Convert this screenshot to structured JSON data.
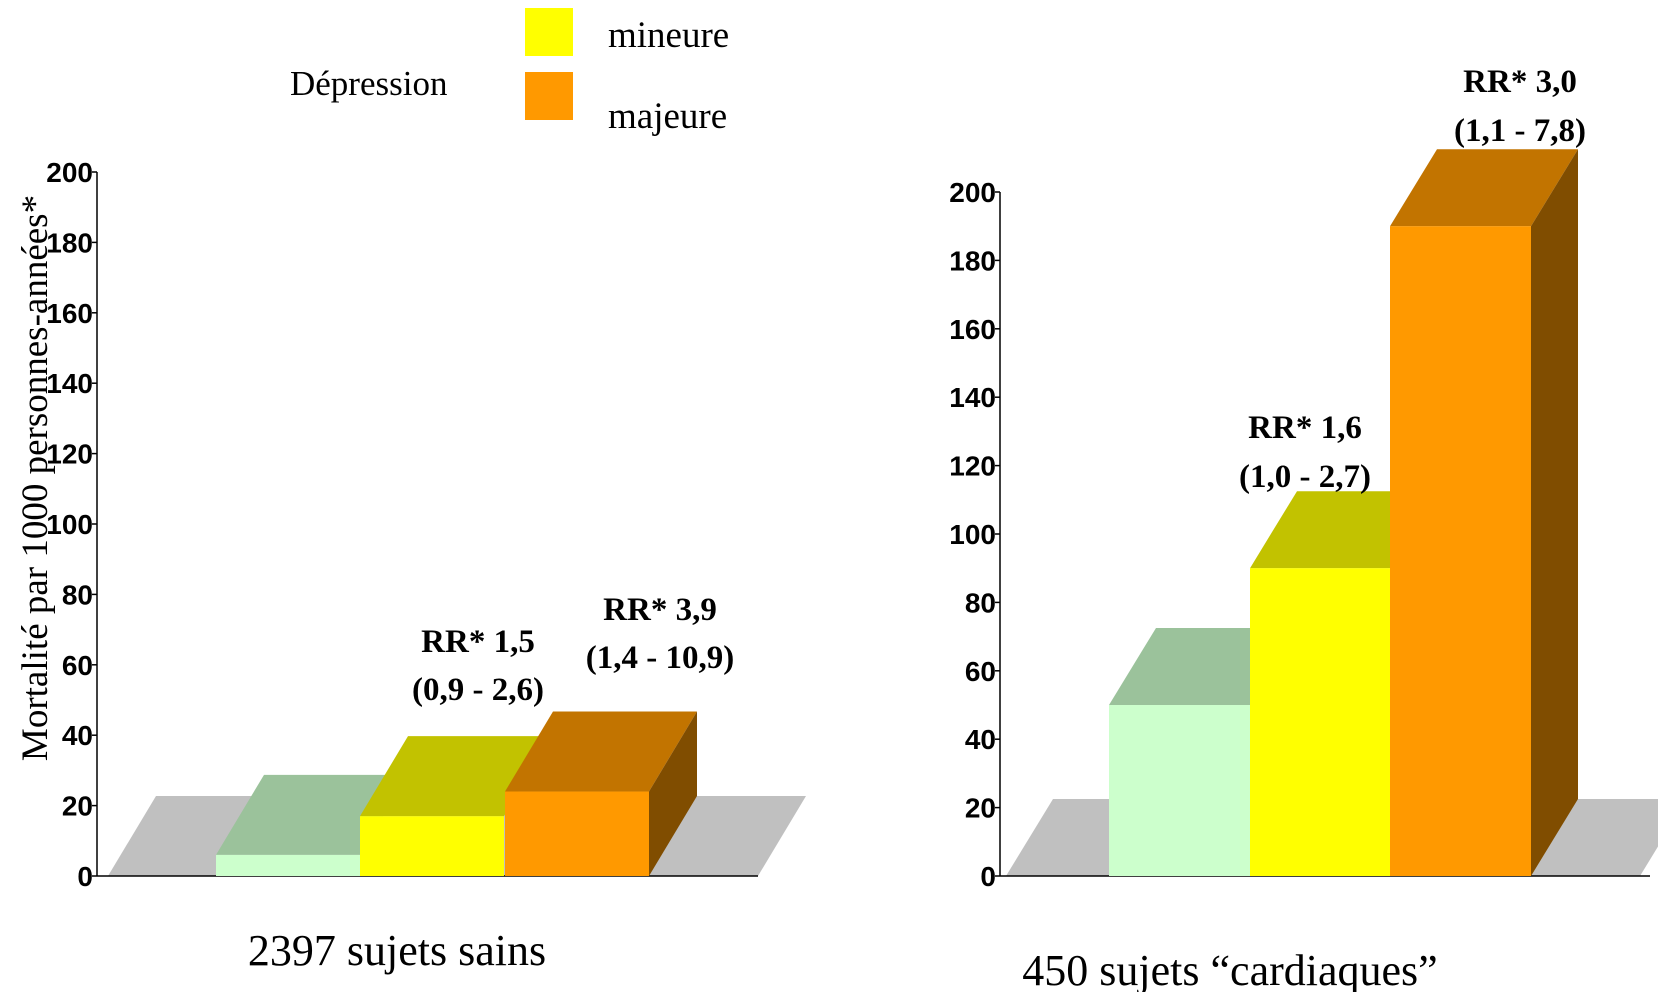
{
  "legend": {
    "title": "Dépression",
    "items": [
      {
        "label": "mineure",
        "color": "#ffff00"
      },
      {
        "label": "majeure",
        "color": "#ff9900"
      }
    ]
  },
  "colors": {
    "control": "#ccffcc",
    "floor": "#c0c0c0",
    "minor": "#ffff00",
    "major": "#ff9900"
  },
  "chart_data": [
    {
      "type": "bar",
      "caption": "2397 sujets sains",
      "ylabel": "Mortalité par 1000 personnes-années*",
      "ylim": [
        0,
        200
      ],
      "yticks": [
        0,
        20,
        40,
        60,
        80,
        100,
        120,
        140,
        160,
        180,
        200
      ],
      "categories": [
        "",
        "mineure",
        "majeure"
      ],
      "values": [
        6,
        17,
        24
      ],
      "annotations": [
        {
          "category": "mineure",
          "line1": "RR* 1,5",
          "line2": "(0,9 - 2,6)"
        },
        {
          "category": "majeure",
          "line1": "RR* 3,9",
          "line2": "(1,4 - 10,9)"
        }
      ]
    },
    {
      "type": "bar",
      "caption": "450 sujets “cardiaques”",
      "ylabel": "",
      "ylim": [
        0,
        200
      ],
      "yticks": [
        0,
        20,
        40,
        60,
        80,
        100,
        120,
        140,
        160,
        180,
        200
      ],
      "categories": [
        "",
        "mineure",
        "majeure"
      ],
      "values": [
        50,
        90,
        190
      ],
      "annotations": [
        {
          "category": "mineure",
          "line1": "RR* 1,6",
          "line2": "(1,0 - 2,7)"
        },
        {
          "category": "majeure",
          "line1": "RR* 3,0",
          "line2": "(1,1 - 7,8)"
        }
      ]
    }
  ]
}
